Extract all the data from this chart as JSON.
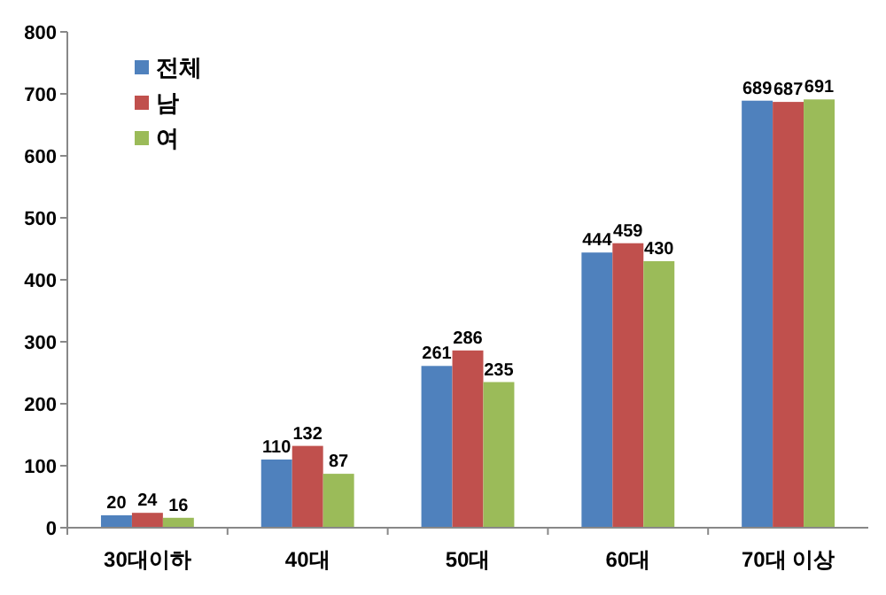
{
  "chart_data": {
    "type": "bar",
    "categories": [
      "30대이하",
      "40대",
      "50대",
      "60대",
      "70대 이상"
    ],
    "series": [
      {
        "name": "전체",
        "color": "#4f81bd",
        "values": [
          20,
          110,
          261,
          444,
          689
        ]
      },
      {
        "name": "남",
        "color": "#c0504d",
        "values": [
          24,
          132,
          286,
          459,
          687
        ]
      },
      {
        "name": "여",
        "color": "#9bbb59",
        "values": [
          16,
          87,
          235,
          430,
          691
        ]
      }
    ],
    "ylim": [
      0,
      800
    ],
    "yticks": [
      0,
      100,
      200,
      300,
      400,
      500,
      600,
      700,
      800
    ],
    "grid": false,
    "legend": "top left",
    "data_labels": true
  }
}
